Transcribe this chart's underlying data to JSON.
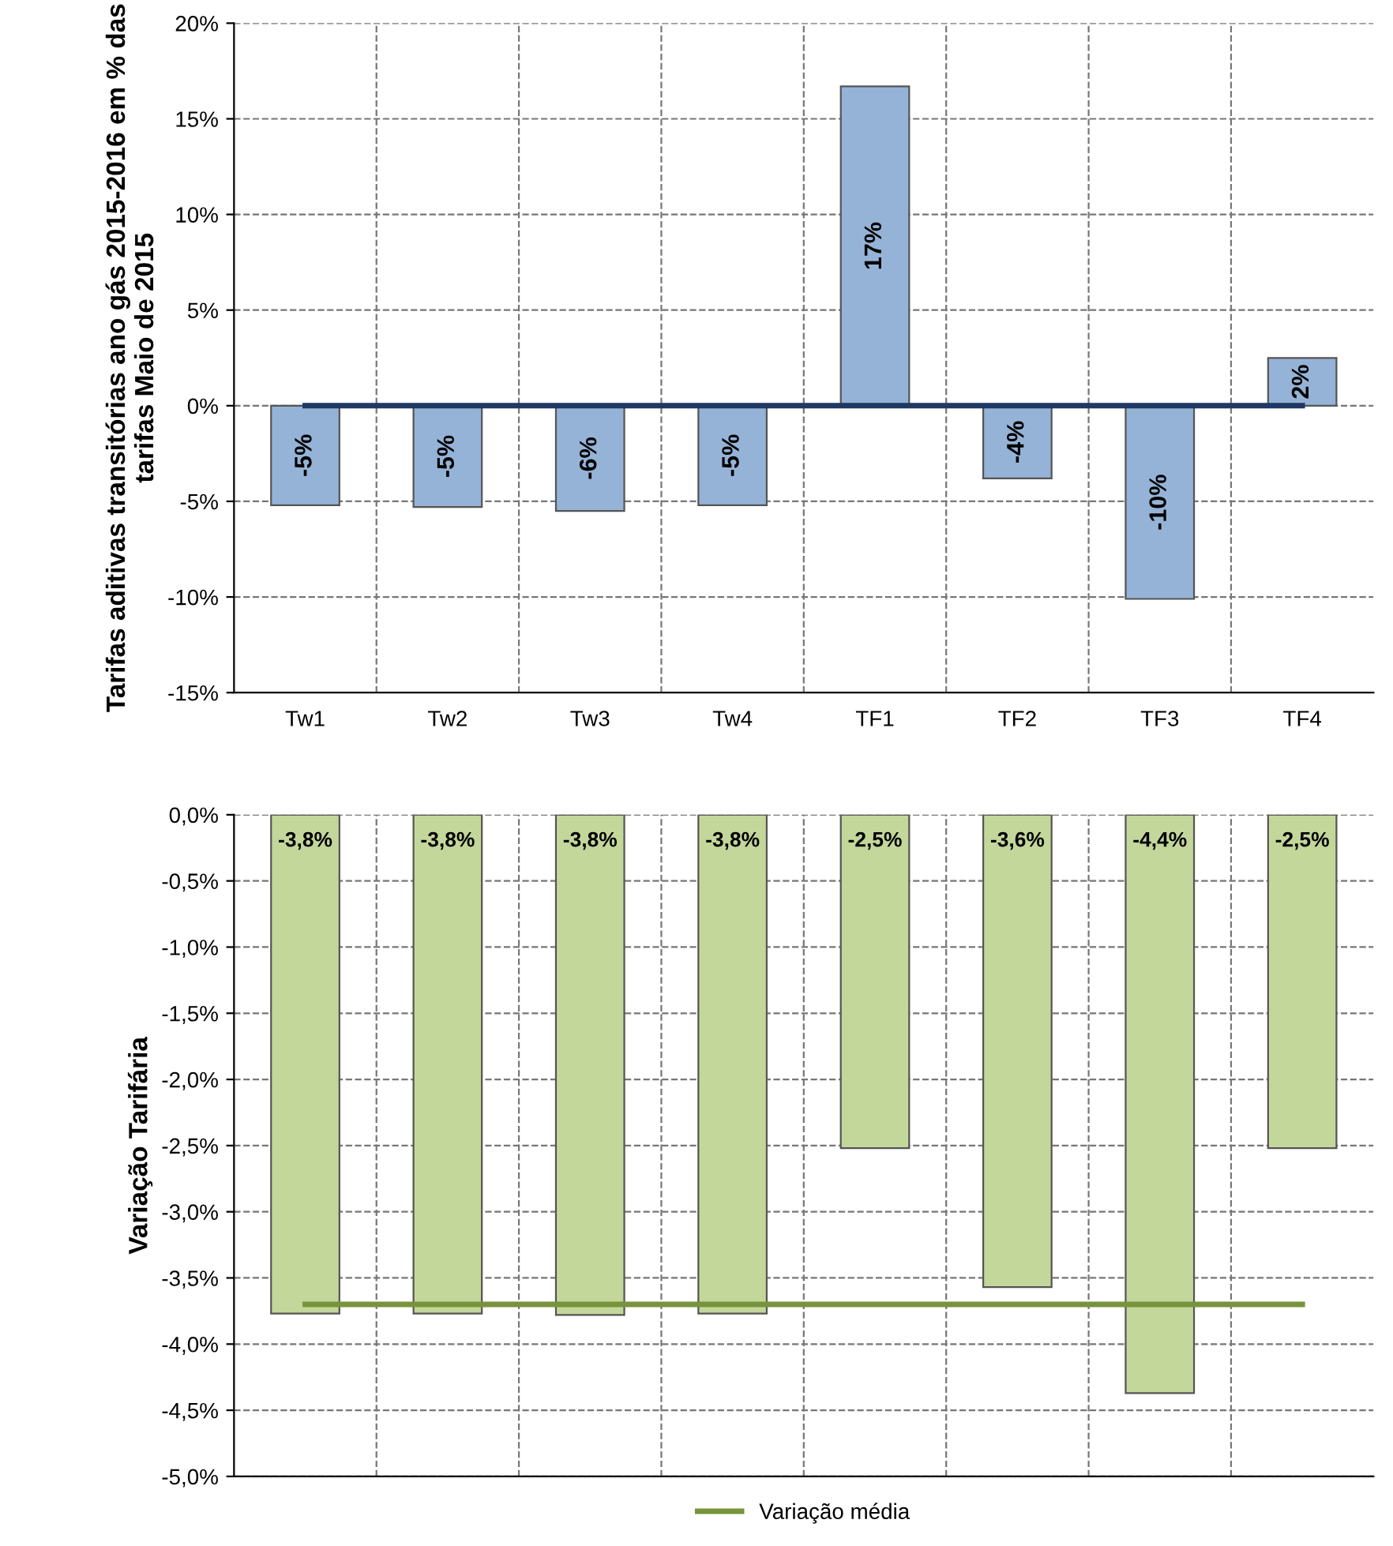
{
  "chart_data": [
    {
      "type": "bar",
      "ylabel": "Tarifas aditivas transitórias ano gás 2015-2016 em % das tarifas Maio de 2015",
      "categories": [
        "Tw1",
        "Tw2",
        "Tw3",
        "Tw4",
        "TF1",
        "TF2",
        "TF3",
        "TF4"
      ],
      "series": [
        {
          "color": "#95b3d7",
          "values": [
            -5.2,
            -5.3,
            -5.5,
            -5.2,
            16.7,
            -3.8,
            -10.1,
            2.5
          ],
          "value_labels": [
            "-5%",
            "-5%",
            "-6%",
            "-5%",
            "17%",
            "-4%",
            "-10%",
            "2%"
          ]
        }
      ],
      "ylim": [
        -15,
        20
      ],
      "yticks": [
        {
          "value": -15,
          "label": "-15%"
        },
        {
          "value": -10,
          "label": "-10%"
        },
        {
          "value": -5,
          "label": "-5%"
        },
        {
          "value": 0,
          "label": "0%"
        },
        {
          "value": 5,
          "label": "5%"
        },
        {
          "value": 10,
          "label": "10%"
        },
        {
          "value": 15,
          "label": "15%"
        },
        {
          "value": 20,
          "label": "20%"
        }
      ],
      "ref_lines": [
        {
          "axis": "y",
          "value": 0,
          "color": "#1f3864"
        }
      ],
      "grid": true
    },
    {
      "type": "bar",
      "ylabel": "Variação Tarifária",
      "categories": [
        null,
        null,
        null,
        null,
        null,
        null,
        null,
        null
      ],
      "series": [
        {
          "color": "#c4d79b",
          "values": [
            -3.77,
            -3.77,
            -3.78,
            -3.77,
            -2.52,
            -3.57,
            -4.37,
            -2.52
          ],
          "value_labels": [
            "-3,8%",
            "-3,8%",
            "-3,8%",
            "-3,8%",
            "-2,5%",
            "-3,6%",
            "-4,4%",
            "-2,5%"
          ]
        }
      ],
      "ylim": [
        -5,
        0
      ],
      "yticks": [
        {
          "value": -5,
          "label": "-5,0%"
        },
        {
          "value": -4.5,
          "label": "-4,5%"
        },
        {
          "value": -4,
          "label": "-4,0%"
        },
        {
          "value": -3.5,
          "label": "-3,5%"
        },
        {
          "value": -3,
          "label": "-3,0%"
        },
        {
          "value": -2.5,
          "label": "-2,5%"
        },
        {
          "value": -2,
          "label": "-2,0%"
        },
        {
          "value": -1.5,
          "label": "-1,5%"
        },
        {
          "value": -1,
          "label": "-1,0%"
        },
        {
          "value": -0.5,
          "label": "-0,5%"
        },
        {
          "value": 0,
          "label": "0,0%"
        }
      ],
      "ref_lines": [
        {
          "axis": "y",
          "value": -3.7,
          "label": "Variação média",
          "color": "#77933c"
        }
      ],
      "tick_labels": "y",
      "legend": "bottom",
      "grid": true
    }
  ]
}
